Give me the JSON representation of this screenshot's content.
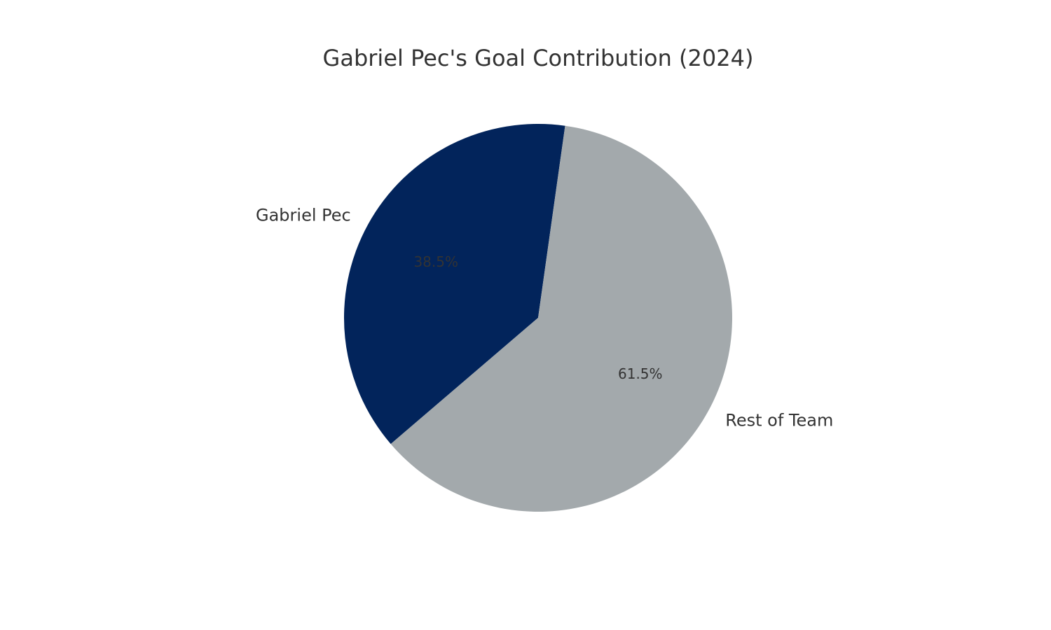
{
  "chart_data": {
    "type": "pie",
    "title": "Gabriel Pec's Goal Contribution (2024)",
    "slices": [
      {
        "label": "Gabriel Pec",
        "value": 38.5,
        "pct_label": "38.5%",
        "color": "#02245b"
      },
      {
        "label": "Rest of Team",
        "value": 61.5,
        "pct_label": "61.5%",
        "color": "#a3a9ac"
      }
    ],
    "legend": "none"
  }
}
